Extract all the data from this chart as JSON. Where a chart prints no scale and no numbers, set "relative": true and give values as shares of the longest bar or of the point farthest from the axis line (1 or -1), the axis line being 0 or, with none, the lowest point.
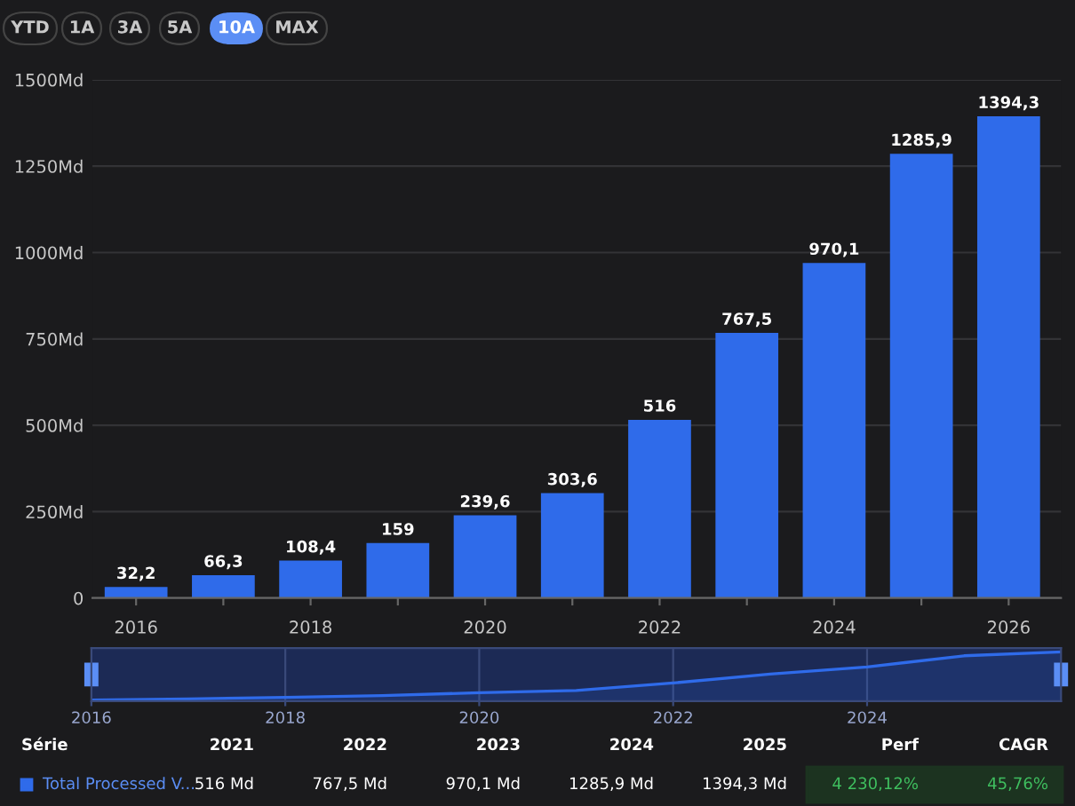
{
  "chart_data": [
    {
      "type": "bar",
      "categories": [
        "2016",
        null,
        "2018",
        null,
        "2020",
        null,
        "2022",
        null,
        "2024",
        null,
        "2026"
      ],
      "series": [
        {
          "name": "Total Processed V...",
          "color": "#2f6bea",
          "values": [
            32.2,
            66.3,
            108.4,
            159,
            239.6,
            303.6,
            516,
            767.5,
            970.1,
            1285.9,
            1394.3
          ],
          "value_labels": [
            "32,2",
            "66,3",
            "108,4",
            "159",
            "239,6",
            "303,6",
            "516",
            "767,5",
            "970,1",
            "1285,9",
            "1394,3"
          ]
        }
      ],
      "ylim": [
        0,
        1500
      ],
      "yticks": [
        {
          "value": 0,
          "label": "0"
        },
        {
          "value": 250,
          "label": "250Md"
        },
        {
          "value": 500,
          "label": "500Md"
        },
        {
          "value": 750,
          "label": "750Md"
        },
        {
          "value": 1000,
          "label": "1000Md"
        },
        {
          "value": 1250,
          "label": "1250Md"
        },
        {
          "value": 1500,
          "label": "1500Md"
        }
      ],
      "grid": "y",
      "annotations": [
        "YTD",
        "1A",
        "3A",
        "5A",
        "10A",
        "MAX",
        "Série",
        "2021",
        "2022",
        "2023",
        "2024",
        "2025",
        "Perf",
        "CAGR",
        "516 Md",
        "767,5 Md",
        "970,1 Md",
        "1285,9 Md",
        "1394,3 Md",
        "4 230,12%",
        "45,76%"
      ]
    },
    {
      "type": "line",
      "x": [
        2016,
        2017,
        2018,
        2019,
        2020,
        2021,
        2022,
        2023,
        2024,
        2025,
        2026
      ],
      "relative": true,
      "series": [
        {
          "color": "#2f6bea",
          "values": [
            0.0231,
            0.0476,
            0.0777,
            0.114,
            0.1718,
            0.2177,
            0.3701,
            0.5504,
            0.6958,
            0.9222,
            1
          ]
        }
      ],
      "xlim": [
        2016,
        2026
      ],
      "xticks": [
        2016,
        2018,
        2020,
        2022,
        2024
      ],
      "tick_labels": "x",
      "grid": "x"
    }
  ]
}
